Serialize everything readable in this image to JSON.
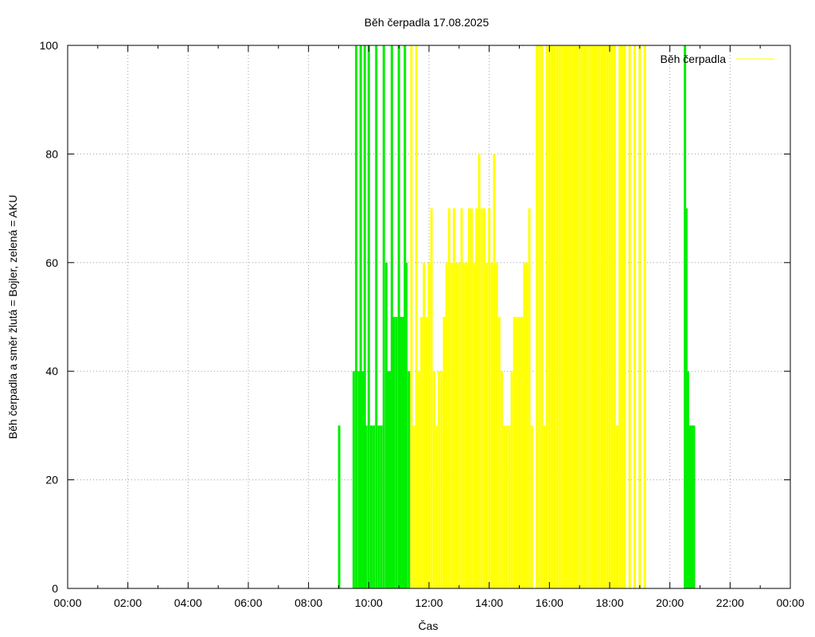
{
  "chart_data": {
    "type": "bar",
    "title": "Běh čerpadla 17.08.2025",
    "xlabel": "Čas",
    "ylabel": "Běh čerpadla a směr žlutá = Bojler, zelená = AKU",
    "ylim": [
      0,
      100
    ],
    "yticks": [
      0,
      20,
      40,
      60,
      80,
      100
    ],
    "xticks": [
      "00:00",
      "02:00",
      "04:00",
      "06:00",
      "08:00",
      "10:00",
      "12:00",
      "14:00",
      "16:00",
      "18:00",
      "20:00",
      "22:00",
      "00:00"
    ],
    "grid": true,
    "legend": {
      "position": "top-right",
      "label": "Běh čerpadla"
    },
    "colors": {
      "bojler": "#ffff00",
      "aku": "#00ee00",
      "grid": "#a0a0a0"
    },
    "series": [
      {
        "key": "aku",
        "values": [
          [
            "09:01",
            30
          ],
          [
            "09:30",
            40
          ],
          [
            "09:35",
            100
          ],
          [
            "09:40",
            40
          ],
          [
            "09:44",
            100
          ],
          [
            "09:47",
            40
          ],
          [
            "09:50",
            40
          ],
          [
            "09:52",
            100
          ],
          [
            "09:55",
            30
          ],
          [
            "10:00",
            100
          ],
          [
            "10:05",
            30
          ],
          [
            "10:10",
            30
          ],
          [
            "10:15",
            100
          ],
          [
            "10:20",
            30
          ],
          [
            "10:25",
            30
          ],
          [
            "10:30",
            100
          ],
          [
            "10:35",
            60
          ],
          [
            "10:38",
            40
          ],
          [
            "10:42",
            40
          ],
          [
            "10:46",
            100
          ],
          [
            "10:50",
            50
          ],
          [
            "10:55",
            50
          ],
          [
            "11:00",
            100
          ],
          [
            "11:04",
            50
          ],
          [
            "11:08",
            50
          ],
          [
            "11:12",
            100
          ],
          [
            "11:15",
            60
          ],
          [
            "11:20",
            40
          ],
          [
            "20:30",
            100
          ],
          [
            "20:33",
            70
          ],
          [
            "20:36",
            40
          ],
          [
            "20:40",
            30
          ],
          [
            "20:44",
            30
          ],
          [
            "20:48",
            30
          ]
        ]
      },
      {
        "key": "bojler",
        "values": [
          [
            "11:25",
            100
          ],
          [
            "11:30",
            30
          ],
          [
            "11:35",
            100
          ],
          [
            "11:40",
            40
          ],
          [
            "11:45",
            50
          ],
          [
            "11:50",
            60
          ],
          [
            "11:55",
            50
          ],
          [
            "12:00",
            60
          ],
          [
            "12:05",
            70
          ],
          [
            "12:10",
            40
          ],
          [
            "12:15",
            30
          ],
          [
            "12:20",
            40
          ],
          [
            "12:25",
            40
          ],
          [
            "12:30",
            50
          ],
          [
            "12:35",
            60
          ],
          [
            "12:40",
            70
          ],
          [
            "12:45",
            60
          ],
          [
            "12:50",
            70
          ],
          [
            "12:55",
            60
          ],
          [
            "13:00",
            60
          ],
          [
            "13:05",
            70
          ],
          [
            "13:10",
            60
          ],
          [
            "13:15",
            60
          ],
          [
            "13:20",
            70
          ],
          [
            "13:25",
            70
          ],
          [
            "13:30",
            60
          ],
          [
            "13:35",
            70
          ],
          [
            "13:40",
            80
          ],
          [
            "13:45",
            70
          ],
          [
            "13:50",
            70
          ],
          [
            "13:55",
            60
          ],
          [
            "14:00",
            70
          ],
          [
            "14:05",
            60
          ],
          [
            "14:10",
            80
          ],
          [
            "14:15",
            60
          ],
          [
            "14:20",
            50
          ],
          [
            "14:25",
            40
          ],
          [
            "14:30",
            30
          ],
          [
            "14:35",
            30
          ],
          [
            "14:40",
            30
          ],
          [
            "14:45",
            40
          ],
          [
            "14:50",
            50
          ],
          [
            "14:55",
            50
          ],
          [
            "15:00",
            50
          ],
          [
            "15:05",
            50
          ],
          [
            "15:10",
            60
          ],
          [
            "15:15",
            60
          ],
          [
            "15:20",
            70
          ],
          [
            "15:25",
            30
          ],
          [
            "15:35",
            100
          ],
          [
            "15:40",
            100
          ],
          [
            "15:45",
            100
          ],
          [
            "15:50",
            30
          ],
          [
            "15:55",
            100
          ],
          [
            "16:00",
            100
          ],
          [
            "16:05",
            100
          ],
          [
            "16:10",
            100
          ],
          [
            "16:15",
            100
          ],
          [
            "16:20",
            100
          ],
          [
            "16:25",
            100
          ],
          [
            "16:30",
            100
          ],
          [
            "16:35",
            100
          ],
          [
            "16:40",
            100
          ],
          [
            "16:45",
            100
          ],
          [
            "16:50",
            100
          ],
          [
            "16:55",
            100
          ],
          [
            "17:00",
            100
          ],
          [
            "17:05",
            100
          ],
          [
            "17:10",
            100
          ],
          [
            "17:15",
            100
          ],
          [
            "17:20",
            100
          ],
          [
            "17:25",
            100
          ],
          [
            "17:30",
            100
          ],
          [
            "17:35",
            100
          ],
          [
            "17:40",
            100
          ],
          [
            "17:45",
            100
          ],
          [
            "17:50",
            100
          ],
          [
            "17:55",
            100
          ],
          [
            "18:00",
            100
          ],
          [
            "18:05",
            100
          ],
          [
            "18:10",
            100
          ],
          [
            "18:15",
            30
          ],
          [
            "18:20",
            100
          ],
          [
            "18:25",
            100
          ],
          [
            "18:30",
            100
          ],
          [
            "18:40",
            100
          ],
          [
            "18:50",
            100
          ],
          [
            "19:00",
            100
          ],
          [
            "19:10",
            100
          ]
        ]
      }
    ]
  }
}
